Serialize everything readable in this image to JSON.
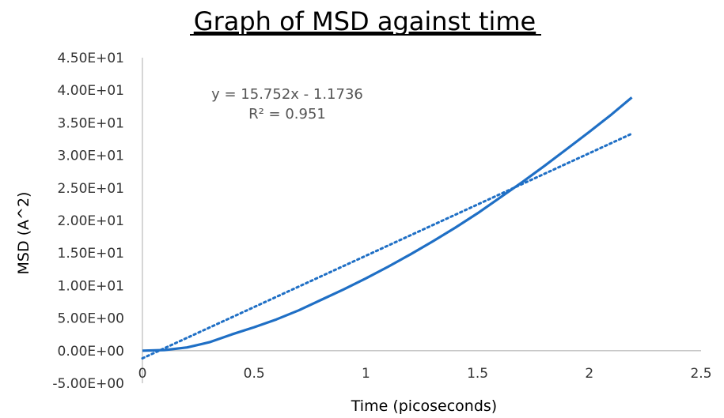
{
  "chart_data": {
    "type": "line",
    "title": "Graph of MSD against time",
    "xlabel": "Time (picoseconds)",
    "ylabel": "MSD (A^2)",
    "xlim": [
      0,
      2.5
    ],
    "ylim": [
      -5,
      45
    ],
    "x_ticks": [
      0,
      0.5,
      1,
      1.5,
      2,
      2.5
    ],
    "x_tick_labels": [
      "0",
      "0.5",
      "1",
      "1.5",
      "2",
      "2.5"
    ],
    "y_ticks": [
      -5,
      0,
      5,
      10,
      15,
      20,
      25,
      30,
      35,
      40,
      45
    ],
    "y_tick_labels": [
      "-5.00E+00",
      "0.00E+00",
      "5.00E+00",
      "1.00E+01",
      "1.50E+01",
      "2.00E+01",
      "2.50E+01",
      "3.00E+01",
      "3.50E+01",
      "4.00E+01",
      "4.50E+01"
    ],
    "grid": false,
    "legend": "none",
    "series": [
      {
        "style": "solid",
        "color": "#1f6fc5",
        "x": [
          0.0,
          0.1,
          0.2,
          0.3,
          0.4,
          0.5,
          0.6,
          0.7,
          0.8,
          0.9,
          1.0,
          1.1,
          1.2,
          1.3,
          1.4,
          1.5,
          1.6,
          1.7,
          1.8,
          1.9,
          2.0,
          2.1,
          2.19
        ],
        "y": [
          0.0,
          0.1,
          0.5,
          1.3,
          2.5,
          3.6,
          4.8,
          6.2,
          7.8,
          9.4,
          11.1,
          12.9,
          14.8,
          16.8,
          18.9,
          21.1,
          23.5,
          25.9,
          28.4,
          31.0,
          33.6,
          36.3,
          38.9
        ]
      }
    ],
    "trendline": {
      "style": "dotted",
      "color": "#1f6fc5",
      "slope": 15.752,
      "intercept": -1.1736,
      "x_range": [
        0,
        2.19
      ],
      "equation": "y = 15.752x - 1.1736",
      "r_squared_label": "R² = 0.951"
    }
  }
}
